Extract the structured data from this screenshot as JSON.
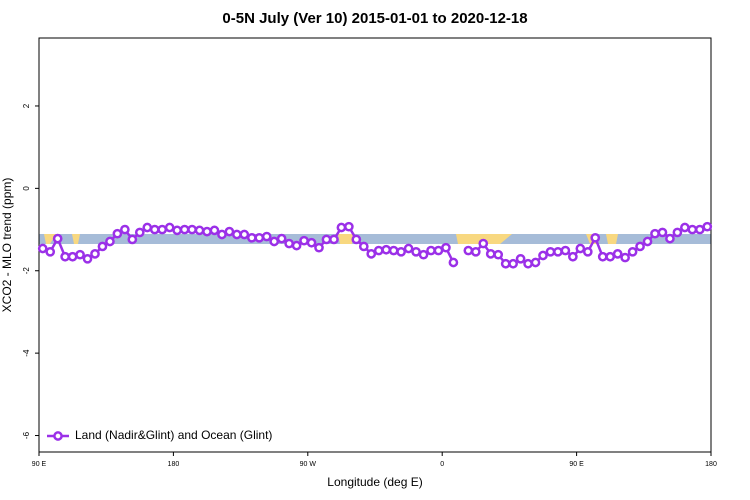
{
  "chart_data": {
    "type": "line",
    "title": "0-5N July (Ver 10)   2015-01-01 to 2020-12-18",
    "x_label": "Longitude (deg E)",
    "y_label": "XCO2 - MLO trend (ppm)",
    "xlim": [
      90,
      540
    ],
    "ylim": [
      -6.4,
      3.65
    ],
    "xticks": [
      {
        "value": 90,
        "label": "90 E"
      },
      {
        "value": 180,
        "label": "180"
      },
      {
        "value": 270,
        "label": "90 W"
      },
      {
        "value": 360,
        "label": "0"
      },
      {
        "value": 450,
        "label": "90 E"
      },
      {
        "value": 540,
        "label": "180"
      }
    ],
    "yticks": [
      -6,
      -4,
      -2,
      0,
      2
    ],
    "legend": "bottomleft",
    "x": [
      92.5,
      97.5,
      102.5,
      107.5,
      112.5,
      117.5,
      122.5,
      127.5,
      132.5,
      137.5,
      142.5,
      147.5,
      152.5,
      157.5,
      162.5,
      167.5,
      172.5,
      177.5,
      182.5,
      187.5,
      192.5,
      197.5,
      202.5,
      207.5,
      212.5,
      217.5,
      222.5,
      227.5,
      232.5,
      237.5,
      242.5,
      247.5,
      252.5,
      257.5,
      262.5,
      267.5,
      272.5,
      277.5,
      282.5,
      287.5,
      292.5,
      297.5,
      302.5,
      307.5,
      312.5,
      317.5,
      322.5,
      327.5,
      332.5,
      337.5,
      342.5,
      347.5,
      352.5,
      357.5,
      362.5,
      367.5,
      372.5,
      377.5,
      382.5,
      387.5,
      392.5,
      397.5,
      402.5,
      407.5,
      412.5,
      417.5,
      422.5,
      427.5,
      432.5,
      437.5,
      442.5,
      447.5,
      452.5,
      457.5,
      462.5,
      467.5,
      472.5,
      477.5,
      482.5,
      487.5,
      492.5,
      497.5,
      502.5,
      507.5,
      512.5,
      517.5,
      522.5,
      527.5,
      532.5,
      537.5
    ],
    "series": [
      {
        "name": "Land (Nadir&Glint) and Ocean (Glint)",
        "color": "#9b30e8",
        "values": [
          -1.46,
          -1.54,
          -1.22,
          -1.66,
          -1.66,
          -1.61,
          -1.71,
          -1.59,
          -1.41,
          -1.29,
          -1.1,
          -1.0,
          -1.24,
          -1.07,
          -0.95,
          -1.0,
          -1.0,
          -0.95,
          -1.02,
          -1.0,
          -1.0,
          -1.02,
          -1.05,
          -1.02,
          -1.12,
          -1.05,
          -1.12,
          -1.12,
          -1.2,
          -1.2,
          -1.17,
          -1.29,
          -1.22,
          -1.34,
          -1.39,
          -1.27,
          -1.32,
          -1.44,
          -1.24,
          -1.24,
          -0.95,
          -0.93,
          -1.24,
          -1.41,
          -1.59,
          -1.51,
          -1.49,
          -1.51,
          -1.54,
          -1.46,
          -1.54,
          -1.61,
          -1.51,
          -1.51,
          -1.44,
          -1.8,
          null,
          -1.51,
          -1.54,
          -1.34,
          -1.59,
          -1.61,
          -1.83,
          -1.83,
          -1.71,
          -1.83,
          -1.8,
          -1.63,
          -1.54,
          -1.54,
          -1.51,
          -1.66,
          -1.46,
          -1.54,
          -1.2,
          -1.66,
          -1.66,
          -1.59,
          -1.68,
          -1.54,
          -1.41,
          -1.29,
          -1.1,
          -1.07,
          -1.22,
          -1.07,
          -0.95,
          -1.0,
          -1.0,
          -0.93
        ]
      }
    ]
  }
}
